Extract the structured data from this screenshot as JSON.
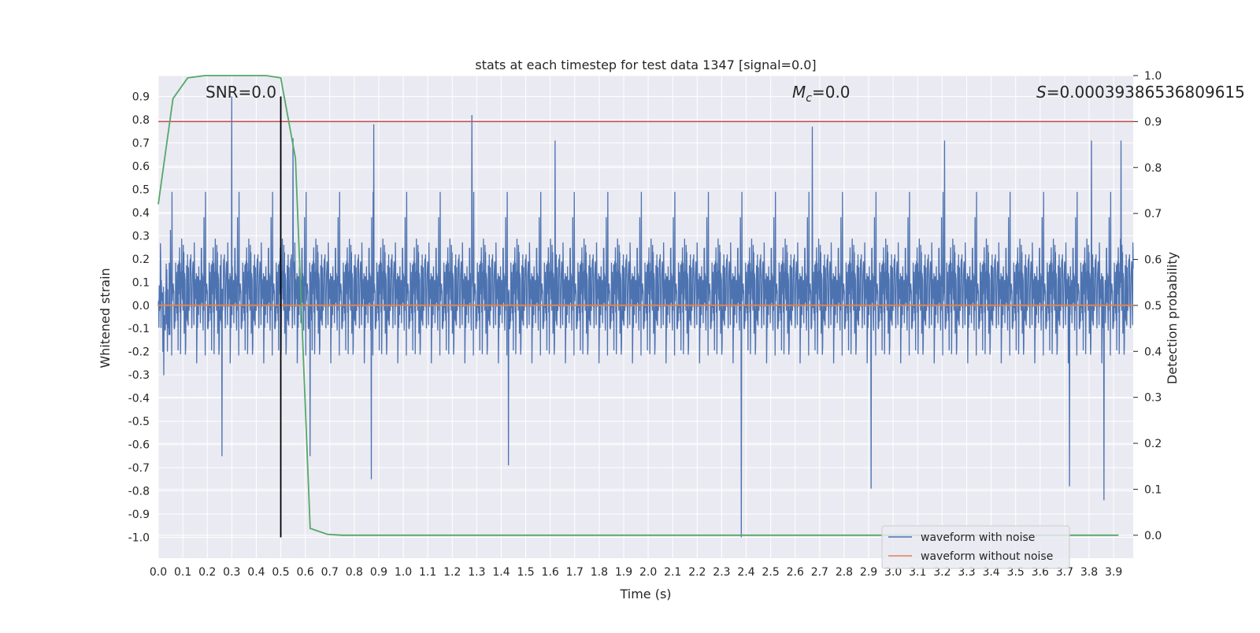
{
  "chart_data": {
    "type": "line",
    "title": "stats at each timestep for test data 1347 [signal=0.0]",
    "xlabel": "Time (s)",
    "ylabel": "Whitened strain",
    "y2label": "Detection probability",
    "xlim": [
      0.0,
      3.98
    ],
    "ylim": [
      -1.09,
      0.99
    ],
    "y2lim": [
      -0.05,
      1.0
    ],
    "xticks": [
      "0.0",
      "0.1",
      "0.2",
      "0.3",
      "0.4",
      "0.5",
      "0.6",
      "0.7",
      "0.8",
      "0.9",
      "1.0",
      "1.1",
      "1.2",
      "1.3",
      "1.4",
      "1.5",
      "1.6",
      "1.7",
      "1.8",
      "1.9",
      "2.0",
      "2.1",
      "2.2",
      "2.3",
      "2.4",
      "2.5",
      "2.6",
      "2.7",
      "2.8",
      "2.9",
      "3.0",
      "3.1",
      "3.2",
      "3.3",
      "3.4",
      "3.5",
      "3.6",
      "3.7",
      "3.8",
      "3.9"
    ],
    "yticks": [
      "0.9",
      "0.8",
      "0.7",
      "0.6",
      "0.5",
      "0.4",
      "0.3",
      "0.2",
      "0.1",
      "0.0",
      "-0.1",
      "-0.2",
      "-0.3",
      "-0.4",
      "-0.5",
      "-0.6",
      "-0.7",
      "-0.8",
      "-0.9",
      "-1.0"
    ],
    "y2ticks": [
      "1.0",
      "0.9",
      "0.8",
      "0.7",
      "0.6",
      "0.5",
      "0.4",
      "0.3",
      "0.2",
      "0.1",
      "0.0"
    ],
    "annotations": {
      "snr": "SNR=0.0",
      "mc_symbol": "M",
      "mc_sub": "c",
      "mc_value": "=0.0",
      "s_symbol": "S",
      "s_value": "=0.00039386536809615"
    },
    "threshold": {
      "axis": "y2",
      "value": 0.9,
      "color": "#c44e52"
    },
    "marker_time": 0.5,
    "series": [
      {
        "name": "waveform with noise",
        "color": "#4c72b0",
        "axis": "y",
        "spikes": [
          {
            "x": 0.3,
            "y": 0.9
          },
          {
            "x": 0.5,
            "y": 0.9
          },
          {
            "x": 0.55,
            "y": 0.72
          },
          {
            "x": 0.88,
            "y": 0.78
          },
          {
            "x": 1.28,
            "y": 0.82
          },
          {
            "x": 2.67,
            "y": 0.77
          },
          {
            "x": 2.38,
            "y": -1.0
          },
          {
            "x": 3.93,
            "y": 0.71
          },
          {
            "x": 0.26,
            "y": -0.65
          },
          {
            "x": 0.87,
            "y": -0.75
          },
          {
            "x": 2.91,
            "y": -0.79
          },
          {
            "x": 3.72,
            "y": -0.78
          },
          {
            "x": 3.86,
            "y": -0.84
          },
          {
            "x": 1.43,
            "y": -0.69
          },
          {
            "x": 0.62,
            "y": -0.65
          },
          {
            "x": 1.62,
            "y": 0.71
          },
          {
            "x": 3.21,
            "y": 0.71
          },
          {
            "x": 3.81,
            "y": 0.71
          }
        ]
      },
      {
        "name": "waveform without noise",
        "color": "#dd8452",
        "axis": "y",
        "x": [
          0.0,
          3.98
        ],
        "y": [
          0.0,
          0.0
        ]
      },
      {
        "color": "#55a868",
        "axis": "y2",
        "x": [
          0.0,
          0.06,
          0.12,
          0.19,
          0.25,
          0.31,
          0.37,
          0.44,
          0.5,
          0.56,
          0.62,
          0.69,
          0.75,
          0.81,
          3.92
        ],
        "y": [
          0.72,
          0.95,
          0.995,
          1.0,
          1.0,
          1.0,
          1.0,
          1.0,
          0.995,
          0.82,
          0.015,
          0.002,
          0.0,
          0.0,
          0.0
        ]
      }
    ],
    "legend": {
      "placement": "lower-right",
      "entries": [
        "waveform with noise",
        "waveform without noise"
      ]
    },
    "grid": true,
    "colors": {
      "background": "#eaeaf2",
      "grid": "#ffffff",
      "marker": "#000000"
    }
  }
}
